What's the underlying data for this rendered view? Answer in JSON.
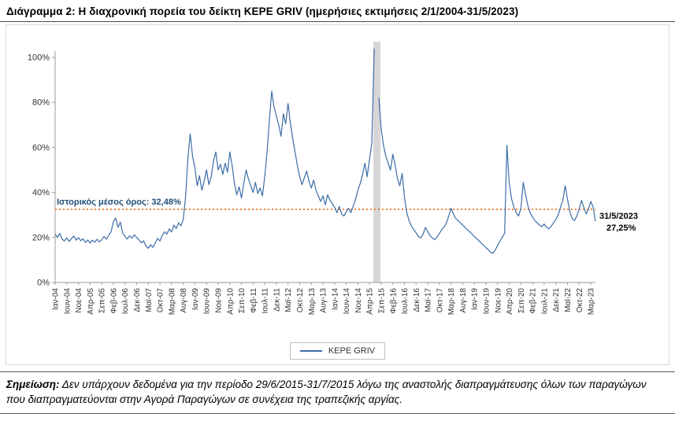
{
  "title": "Διάγραμμα 2: Η διαχρονική πορεία του δείκτη KEPE GRIV (ημερήσιες εκτιμήσεις 2/1/2004-31/5/2023)",
  "legend": {
    "label": "KEPE GRIV"
  },
  "note": {
    "label": "Σημείωση:",
    "text": " Δεν υπάρχουν δεδομένα για την περίοδο 29/6/2015-31/7/2015 λόγω της αναστολής διαπραγμάτευσης όλων των παραγώγων που διαπραγματεύονται στην Αγορά Παραγώγων σε συνέχεια της τραπεζικής αργίας."
  },
  "chart_data": {
    "type": "line",
    "title": "Διάγραμμα 2: Η διαχρονική πορεία του δείκτη KEPE GRIV (ημερήσιες εκτιμήσεις 2/1/2004-31/5/2023)",
    "series_name": "KEPE GRIV",
    "unit": "%",
    "start_month": "2004-01",
    "end_month": "2023-05",
    "ylim": [
      0,
      100
    ],
    "y_ticks": [
      "0%",
      "20%",
      "40%",
      "60%",
      "80%",
      "100%"
    ],
    "grid": "off",
    "legend_position": "bottom",
    "line_color": "#3E6DA8",
    "x_tick_step_months": 5,
    "x_tick_labels": [
      "Ιαν-04",
      "Ιουν-04",
      "Νοε-04",
      "Απρ-05",
      "Σεπ-05",
      "Φεβ-06",
      "Ιουλ-06",
      "Δεκ-06",
      "Μαϊ-07",
      "Οκτ-07",
      "Μαρ-08",
      "Αυγ-08",
      "Ιαν-09",
      "Ιουν-09",
      "Νοε-09",
      "Απρ-10",
      "Σεπ-10",
      "Φεβ-11",
      "Ιουλ-11",
      "Δεκ-11",
      "Μαϊ-12",
      "Οκτ-12",
      "Μαρ-13",
      "Αυγ-13",
      "Ιαν-14",
      "Ιουν-14",
      "Νοε-14",
      "Απρ-15",
      "Σεπ-15",
      "Φεβ-16",
      "Ιουλ-16",
      "Δεκ-16",
      "Μαϊ-17",
      "Οκτ-17",
      "Μαρ-18",
      "Αυγ-18",
      "Ιαν-19",
      "Ιουν-19",
      "Νοε-19",
      "Απρ-20",
      "Σεπ-20",
      "Φεβ-21",
      "Ιουλ-21",
      "Δεκ-21",
      "Μαϊ-22",
      "Οκτ-22",
      "Μαρ-23"
    ],
    "monthly_values_pct": [
      21.5,
      20.0,
      21.8,
      19.2,
      18.5,
      19.8,
      18.2,
      19.5,
      20.6,
      18.8,
      19.9,
      18.6,
      19.4,
      17.8,
      18.9,
      17.5,
      18.8,
      17.9,
      19.2,
      18.0,
      19.0,
      20.5,
      19.3,
      21.0,
      22.5,
      27.0,
      28.6,
      24.5,
      26.8,
      22.0,
      20.5,
      19.3,
      20.8,
      19.6,
      21.2,
      20.0,
      19.0,
      17.6,
      18.5,
      16.2,
      15.2,
      16.8,
      15.6,
      17.5,
      19.6,
      18.4,
      21.0,
      22.6,
      21.5,
      23.8,
      22.4,
      25.5,
      24.0,
      26.5,
      25.2,
      28.0,
      38.0,
      55.0,
      66.0,
      56.0,
      51.0,
      43.0,
      47.5,
      41.0,
      45.0,
      50.0,
      43.5,
      47.0,
      54.0,
      58.0,
      50.0,
      52.5,
      48.0,
      53.0,
      49.0,
      58.0,
      52.0,
      44.0,
      39.0,
      42.5,
      37.5,
      44.0,
      50.0,
      46.0,
      43.0,
      40.0,
      44.5,
      39.5,
      42.0,
      38.5,
      47.0,
      58.0,
      72.0,
      85.0,
      78.0,
      74.0,
      70.0,
      65.0,
      75.0,
      70.5,
      79.5,
      71.0,
      64.0,
      58.0,
      52.0,
      47.0,
      43.5,
      46.5,
      49.5,
      45.0,
      42.0,
      45.5,
      41.0,
      38.5,
      36.0,
      38.5,
      34.5,
      39.0,
      36.5,
      35.0,
      33.5,
      31.0,
      33.8,
      30.5,
      29.5,
      31.5,
      33.0,
      31.0,
      34.0,
      37.0,
      41.0,
      44.0,
      48.0,
      53.0,
      47.0,
      55.0,
      62.0,
      104.0,
      null,
      82.0,
      68.0,
      61.0,
      56.0,
      53.0,
      50.0,
      57.0,
      52.0,
      46.0,
      43.0,
      48.5,
      38.0,
      31.0,
      27.5,
      25.0,
      23.5,
      22.0,
      20.5,
      19.8,
      21.5,
      24.5,
      22.5,
      20.8,
      19.8,
      19.0,
      20.2,
      21.8,
      23.5,
      24.6,
      26.5,
      29.5,
      33.0,
      30.5,
      28.5,
      27.5,
      26.5,
      25.5,
      24.5,
      23.5,
      22.5,
      21.5,
      20.5,
      19.5,
      18.5,
      17.5,
      16.5,
      15.5,
      14.5,
      13.5,
      13.0,
      14.5,
      16.5,
      18.5,
      20.0,
      22.0,
      61.0,
      44.0,
      37.0,
      33.5,
      31.0,
      29.5,
      33.0,
      44.5,
      39.0,
      34.0,
      31.0,
      29.0,
      27.5,
      26.5,
      25.5,
      24.8,
      26.0,
      24.5,
      23.8,
      25.0,
      26.5,
      28.0,
      30.0,
      33.5,
      36.5,
      43.0,
      37.0,
      31.5,
      28.5,
      27.5,
      29.5,
      32.5,
      36.5,
      33.5,
      30.5,
      32.5,
      36.0,
      33.5,
      27.25
    ],
    "mean_line": {
      "value_pct": 32.48,
      "label": "Ιστορικός μέσος όρος: 32,48%",
      "label_color": "#1F4E79",
      "color": "#ED6C18",
      "style": "dotted"
    },
    "last_point": {
      "date_label": "31/5/2023",
      "value_label": "27,25%",
      "value_pct": 27.25
    },
    "gap": {
      "period": "29/6/2015-31/7/2015",
      "band_color": "#D6D6D6"
    }
  }
}
